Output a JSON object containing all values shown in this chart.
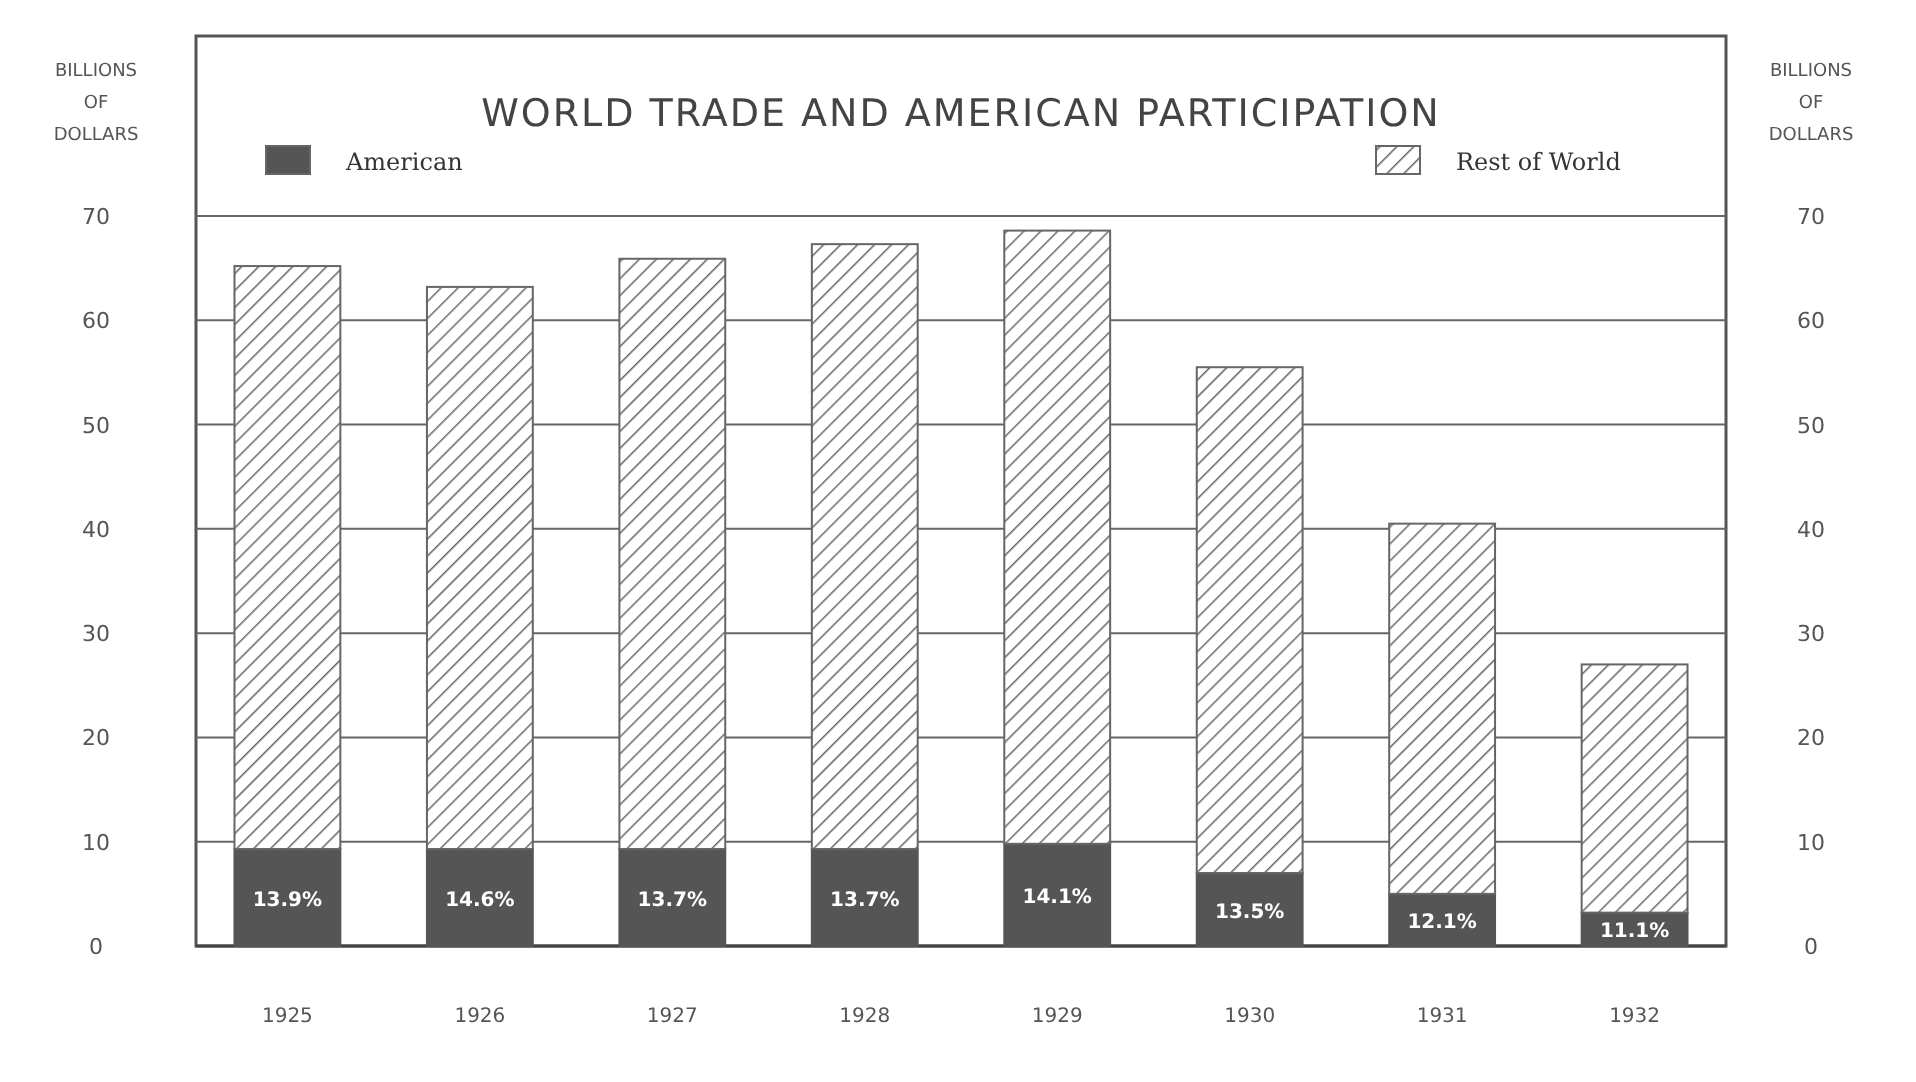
{
  "chart_data": {
    "type": "bar",
    "title": "WORLD TRADE AND AMERICAN PARTICIPATION",
    "ylabel": "BILLIONS OF DOLLARS",
    "y2label": "BILLIONS OF DOLLARS",
    "categories": [
      "1925",
      "1926",
      "1927",
      "1928",
      "1929",
      "1930",
      "1931",
      "1932"
    ],
    "stacked": true,
    "series": [
      {
        "name": "American",
        "color": "#555555",
        "values": [
          9.3,
          9.3,
          9.3,
          9.3,
          9.8,
          7.0,
          5.0,
          3.2
        ]
      },
      {
        "name": "Rest of World",
        "color": "#666666",
        "values": [
          55.9,
          53.9,
          56.6,
          58.0,
          58.8,
          48.5,
          35.5,
          23.8
        ]
      }
    ],
    "annotations": [
      {
        "text": "13.9%",
        "x": "1925",
        "y": 9.3
      },
      {
        "text": "14.6%",
        "x": "1926",
        "y": 9.3
      },
      {
        "text": "13.7%",
        "x": "1927",
        "y": 9.3
      },
      {
        "text": "13.7%",
        "x": "1928",
        "y": 9.3
      },
      {
        "text": "14.1%",
        "x": "1929",
        "y": 9.8
      },
      {
        "text": "13.5%",
        "x": "1930",
        "y": 7.0
      },
      {
        "text": "12.1%",
        "x": "1931",
        "y": 5.0
      },
      {
        "text": "11.1%",
        "x": "1932",
        "y": 3.2
      }
    ],
    "ylim": [
      0,
      70
    ],
    "yticks": [
      0,
      10,
      20,
      30,
      40,
      50,
      60,
      70
    ],
    "y2lim": [
      0,
      70
    ],
    "y2ticks": [
      0,
      10,
      20,
      30,
      40,
      50,
      60,
      70
    ],
    "grid": "y",
    "legend": "top"
  }
}
